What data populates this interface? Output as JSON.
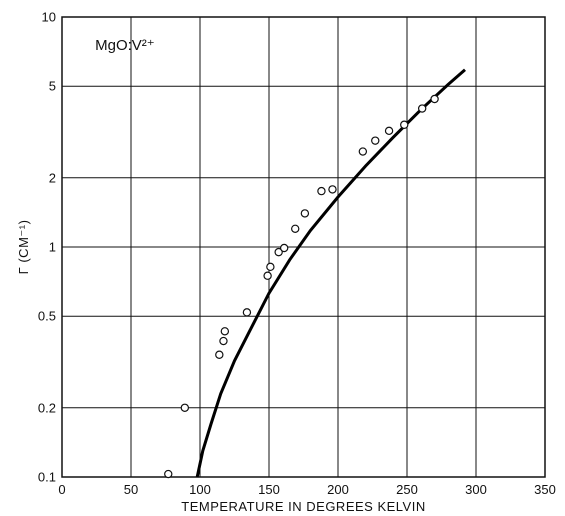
{
  "chart_data": {
    "type": "scatter",
    "annotation": "MgO:V²⁺",
    "xlabel": "TEMPERATURE IN DEGREES KELVIN",
    "ylabel": "Γ (CM⁻¹)",
    "x_scale": "linear",
    "y_scale": "log",
    "xlim": [
      0,
      350
    ],
    "ylim": [
      0.1,
      10
    ],
    "x_ticks": [
      0,
      50,
      100,
      150,
      200,
      250,
      300,
      350
    ],
    "y_ticks": [
      0.1,
      0.2,
      0.5,
      1,
      2,
      5,
      10
    ],
    "y_tick_labels": [
      "0.1",
      "0.2",
      "0.5",
      "1",
      "2",
      "5",
      "10"
    ],
    "grid": true,
    "series": [
      {
        "kind": "points",
        "x": [
          77,
          89,
          114,
          117,
          118,
          134,
          149,
          151,
          157,
          161,
          169,
          176,
          188,
          196,
          218,
          227,
          237,
          248,
          261,
          270
        ],
        "y": [
          0.103,
          0.2,
          0.34,
          0.39,
          0.43,
          0.52,
          0.75,
          0.82,
          0.95,
          0.99,
          1.2,
          1.4,
          1.75,
          1.78,
          2.6,
          2.9,
          3.2,
          3.4,
          4.0,
          4.4
        ]
      },
      {
        "kind": "curve",
        "x": [
          98,
          102,
          108,
          115,
          125,
          135,
          150,
          165,
          180,
          200,
          220,
          240,
          260,
          280,
          292
        ],
        "y": [
          0.1,
          0.13,
          0.17,
          0.23,
          0.32,
          0.42,
          0.63,
          0.88,
          1.18,
          1.65,
          2.25,
          3.0,
          3.95,
          5.1,
          5.9
        ]
      }
    ]
  }
}
